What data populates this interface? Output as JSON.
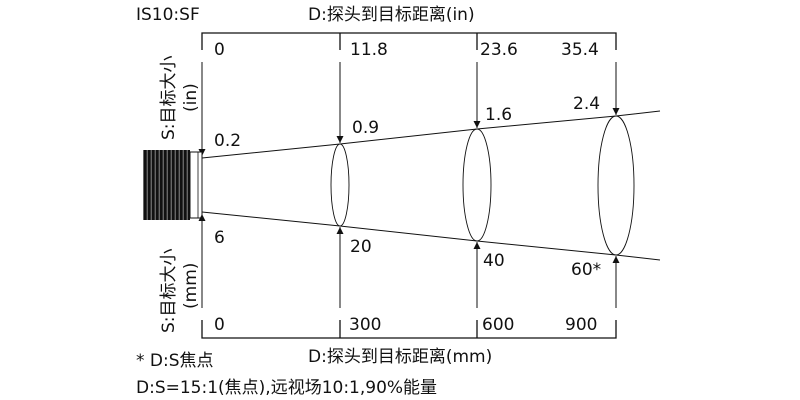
{
  "model": "IS10:SF",
  "top_axis_title": "D:探头到目标距离(in)",
  "bottom_axis_title": "D:探头到目标距离(mm)",
  "left_top_label": [
    "S:目标大小",
    "(in)"
  ],
  "left_bottom_label": [
    "S:目标大小",
    "(mm)"
  ],
  "distance_in": [
    "0",
    "11.8",
    "23.6",
    "35.4"
  ],
  "spot_in": [
    "0.2",
    "0.9",
    "1.6",
    "2.4"
  ],
  "distance_mm": [
    "0",
    "300",
    "600",
    "900"
  ],
  "spot_mm": [
    "6",
    "20",
    "40",
    "60*"
  ],
  "footnote": "* D:S焦点",
  "spec": "D:S=15:1(焦点),远视场10:1,90%能量"
}
